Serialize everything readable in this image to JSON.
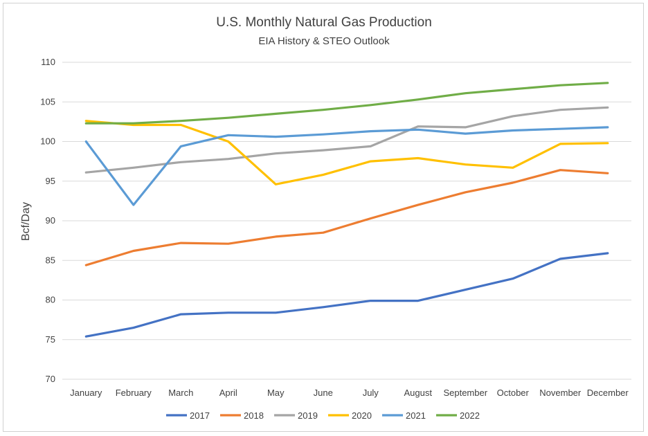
{
  "chart_data": {
    "type": "line",
    "title": "U.S. Monthly Natural Gas Production",
    "subtitle": "EIA History & STEO Outlook",
    "xlabel": "",
    "ylabel": "Bcf/Day",
    "ylim": [
      70,
      110
    ],
    "yticks": [
      70,
      75,
      80,
      85,
      90,
      95,
      100,
      105,
      110
    ],
    "grid": true,
    "legend_position": "bottom",
    "categories": [
      "January",
      "February",
      "March",
      "April",
      "May",
      "June",
      "July",
      "August",
      "September",
      "October",
      "November",
      "December"
    ],
    "series": [
      {
        "name": "2017",
        "color": "#4472c4",
        "values": [
          75.4,
          76.5,
          78.2,
          78.4,
          78.4,
          79.1,
          79.9,
          79.9,
          81.3,
          82.7,
          85.2,
          85.9
        ]
      },
      {
        "name": "2018",
        "color": "#ed7d31",
        "values": [
          84.4,
          86.2,
          87.2,
          87.1,
          88.0,
          88.5,
          90.3,
          92.0,
          93.6,
          94.8,
          96.4,
          96.0
        ]
      },
      {
        "name": "2019",
        "color": "#a5a5a5",
        "values": [
          96.1,
          96.7,
          97.4,
          97.8,
          98.5,
          98.9,
          99.4,
          101.9,
          101.8,
          103.2,
          104.0,
          104.3
        ]
      },
      {
        "name": "2020",
        "color": "#ffc000",
        "values": [
          102.6,
          102.1,
          102.1,
          100.0,
          94.6,
          95.8,
          97.5,
          97.9,
          97.1,
          96.7,
          99.7,
          99.8
        ]
      },
      {
        "name": "2021",
        "color": "#5b9bd5",
        "values": [
          100.0,
          92.0,
          99.4,
          100.8,
          100.6,
          100.9,
          101.3,
          101.5,
          101.0,
          101.4,
          101.6,
          101.8
        ]
      },
      {
        "name": "2022",
        "color": "#70ad47",
        "values": [
          102.3,
          102.3,
          102.6,
          103.0,
          103.5,
          104.0,
          104.6,
          105.3,
          106.1,
          106.6,
          107.1,
          107.4
        ]
      }
    ]
  }
}
